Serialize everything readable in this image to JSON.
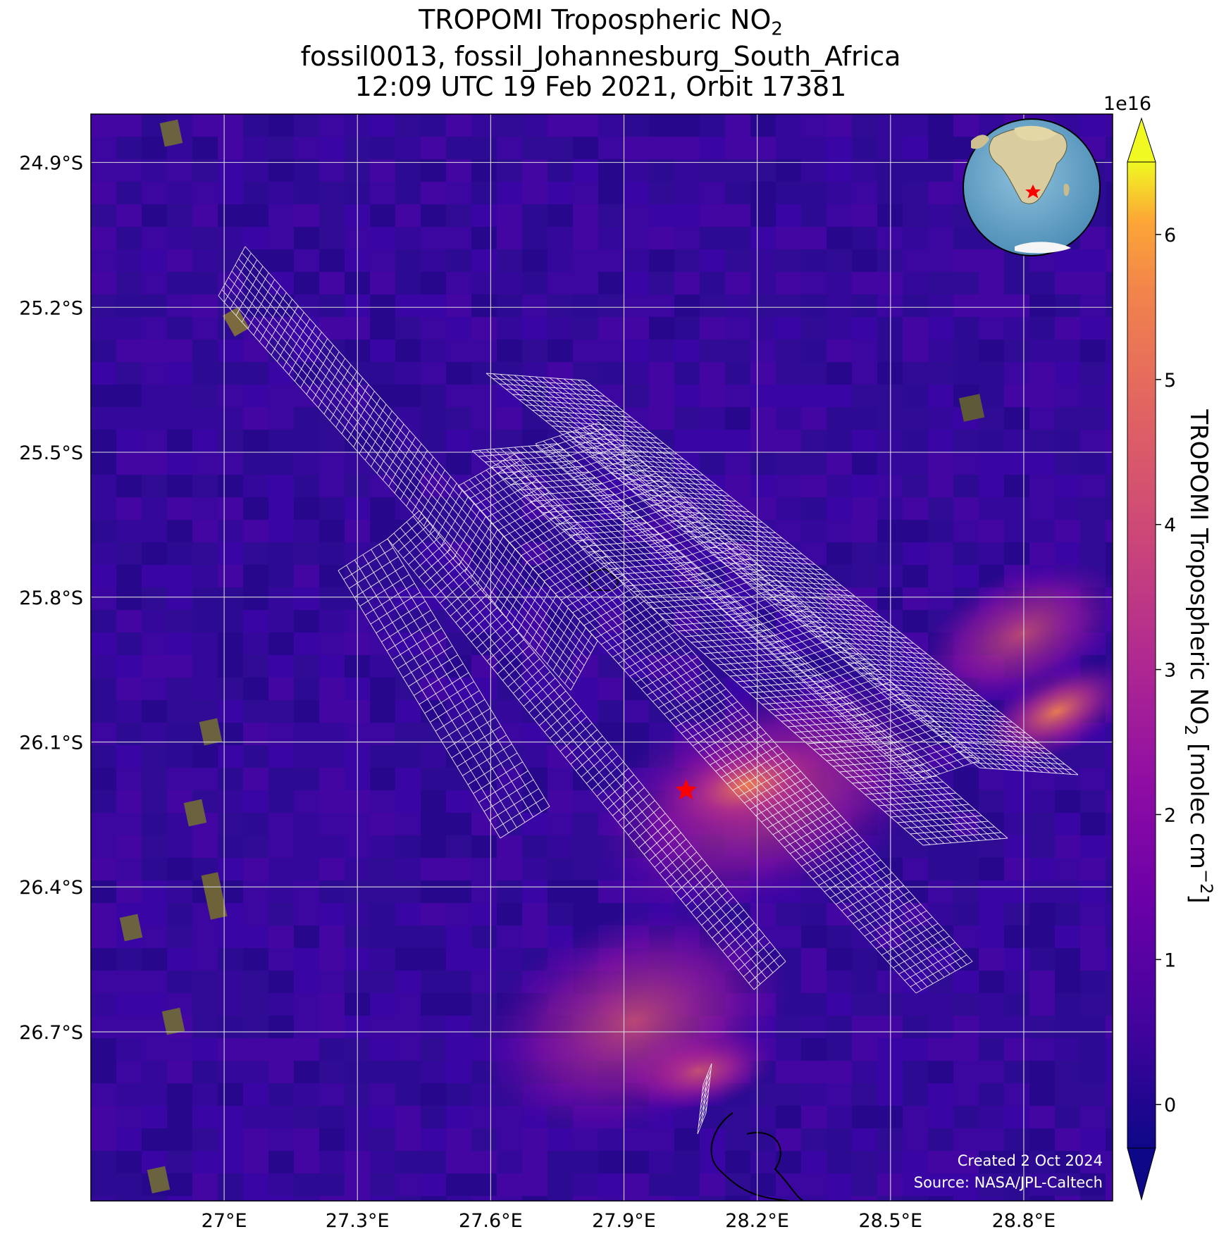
{
  "title": {
    "line1": "TROPOMI Tropospheric NO",
    "line1_sub": "2",
    "line2": "fossil0013, fossil_Johannesburg_South_Africa",
    "line3": "12:09 UTC 19 Feb 2021, Orbit 17381"
  },
  "map": {
    "lon_range": [
      26.7,
      29.0
    ],
    "lat_range": [
      -27.05,
      -24.8
    ],
    "lon_ticks": [
      27.0,
      27.3,
      27.6,
      27.9,
      28.2,
      28.5,
      28.8
    ],
    "lon_tick_labels": [
      "27°E",
      "27.3°E",
      "27.6°E",
      "27.9°E",
      "28.2°E",
      "28.5°E",
      "28.8°E"
    ],
    "lat_ticks": [
      -24.9,
      -25.2,
      -25.5,
      -25.8,
      -26.1,
      -26.4,
      -26.7
    ],
    "lat_tick_labels": [
      "24.9°S",
      "25.2°S",
      "25.5°S",
      "25.8°S",
      "26.1°S",
      "26.4°S",
      "26.7°S"
    ],
    "target": {
      "lon": 28.04,
      "lat": -26.2,
      "color": "#ff0000"
    },
    "background_color": "#3a0a9e",
    "grid_color": "#d8d8d8",
    "overlay_grid_color": "#ffffff"
  },
  "colorbar": {
    "min": -0.3,
    "max": 6.5,
    "ticks": [
      0,
      1,
      2,
      3,
      4,
      5,
      6
    ],
    "tick_labels": [
      "0",
      "1",
      "2",
      "3",
      "4",
      "5",
      "6"
    ],
    "exponent": "1e16",
    "label_prefix": "TROPOMI Tropospheric NO",
    "label_sub": "2",
    "label_suffix_a": " [molec cm",
    "label_sup": "−2",
    "label_suffix_b": "]",
    "colormap": "plasma"
  },
  "credits": {
    "created": "Created 2 Oct 2024",
    "source": "Source: NASA/JPL-Caltech"
  }
}
